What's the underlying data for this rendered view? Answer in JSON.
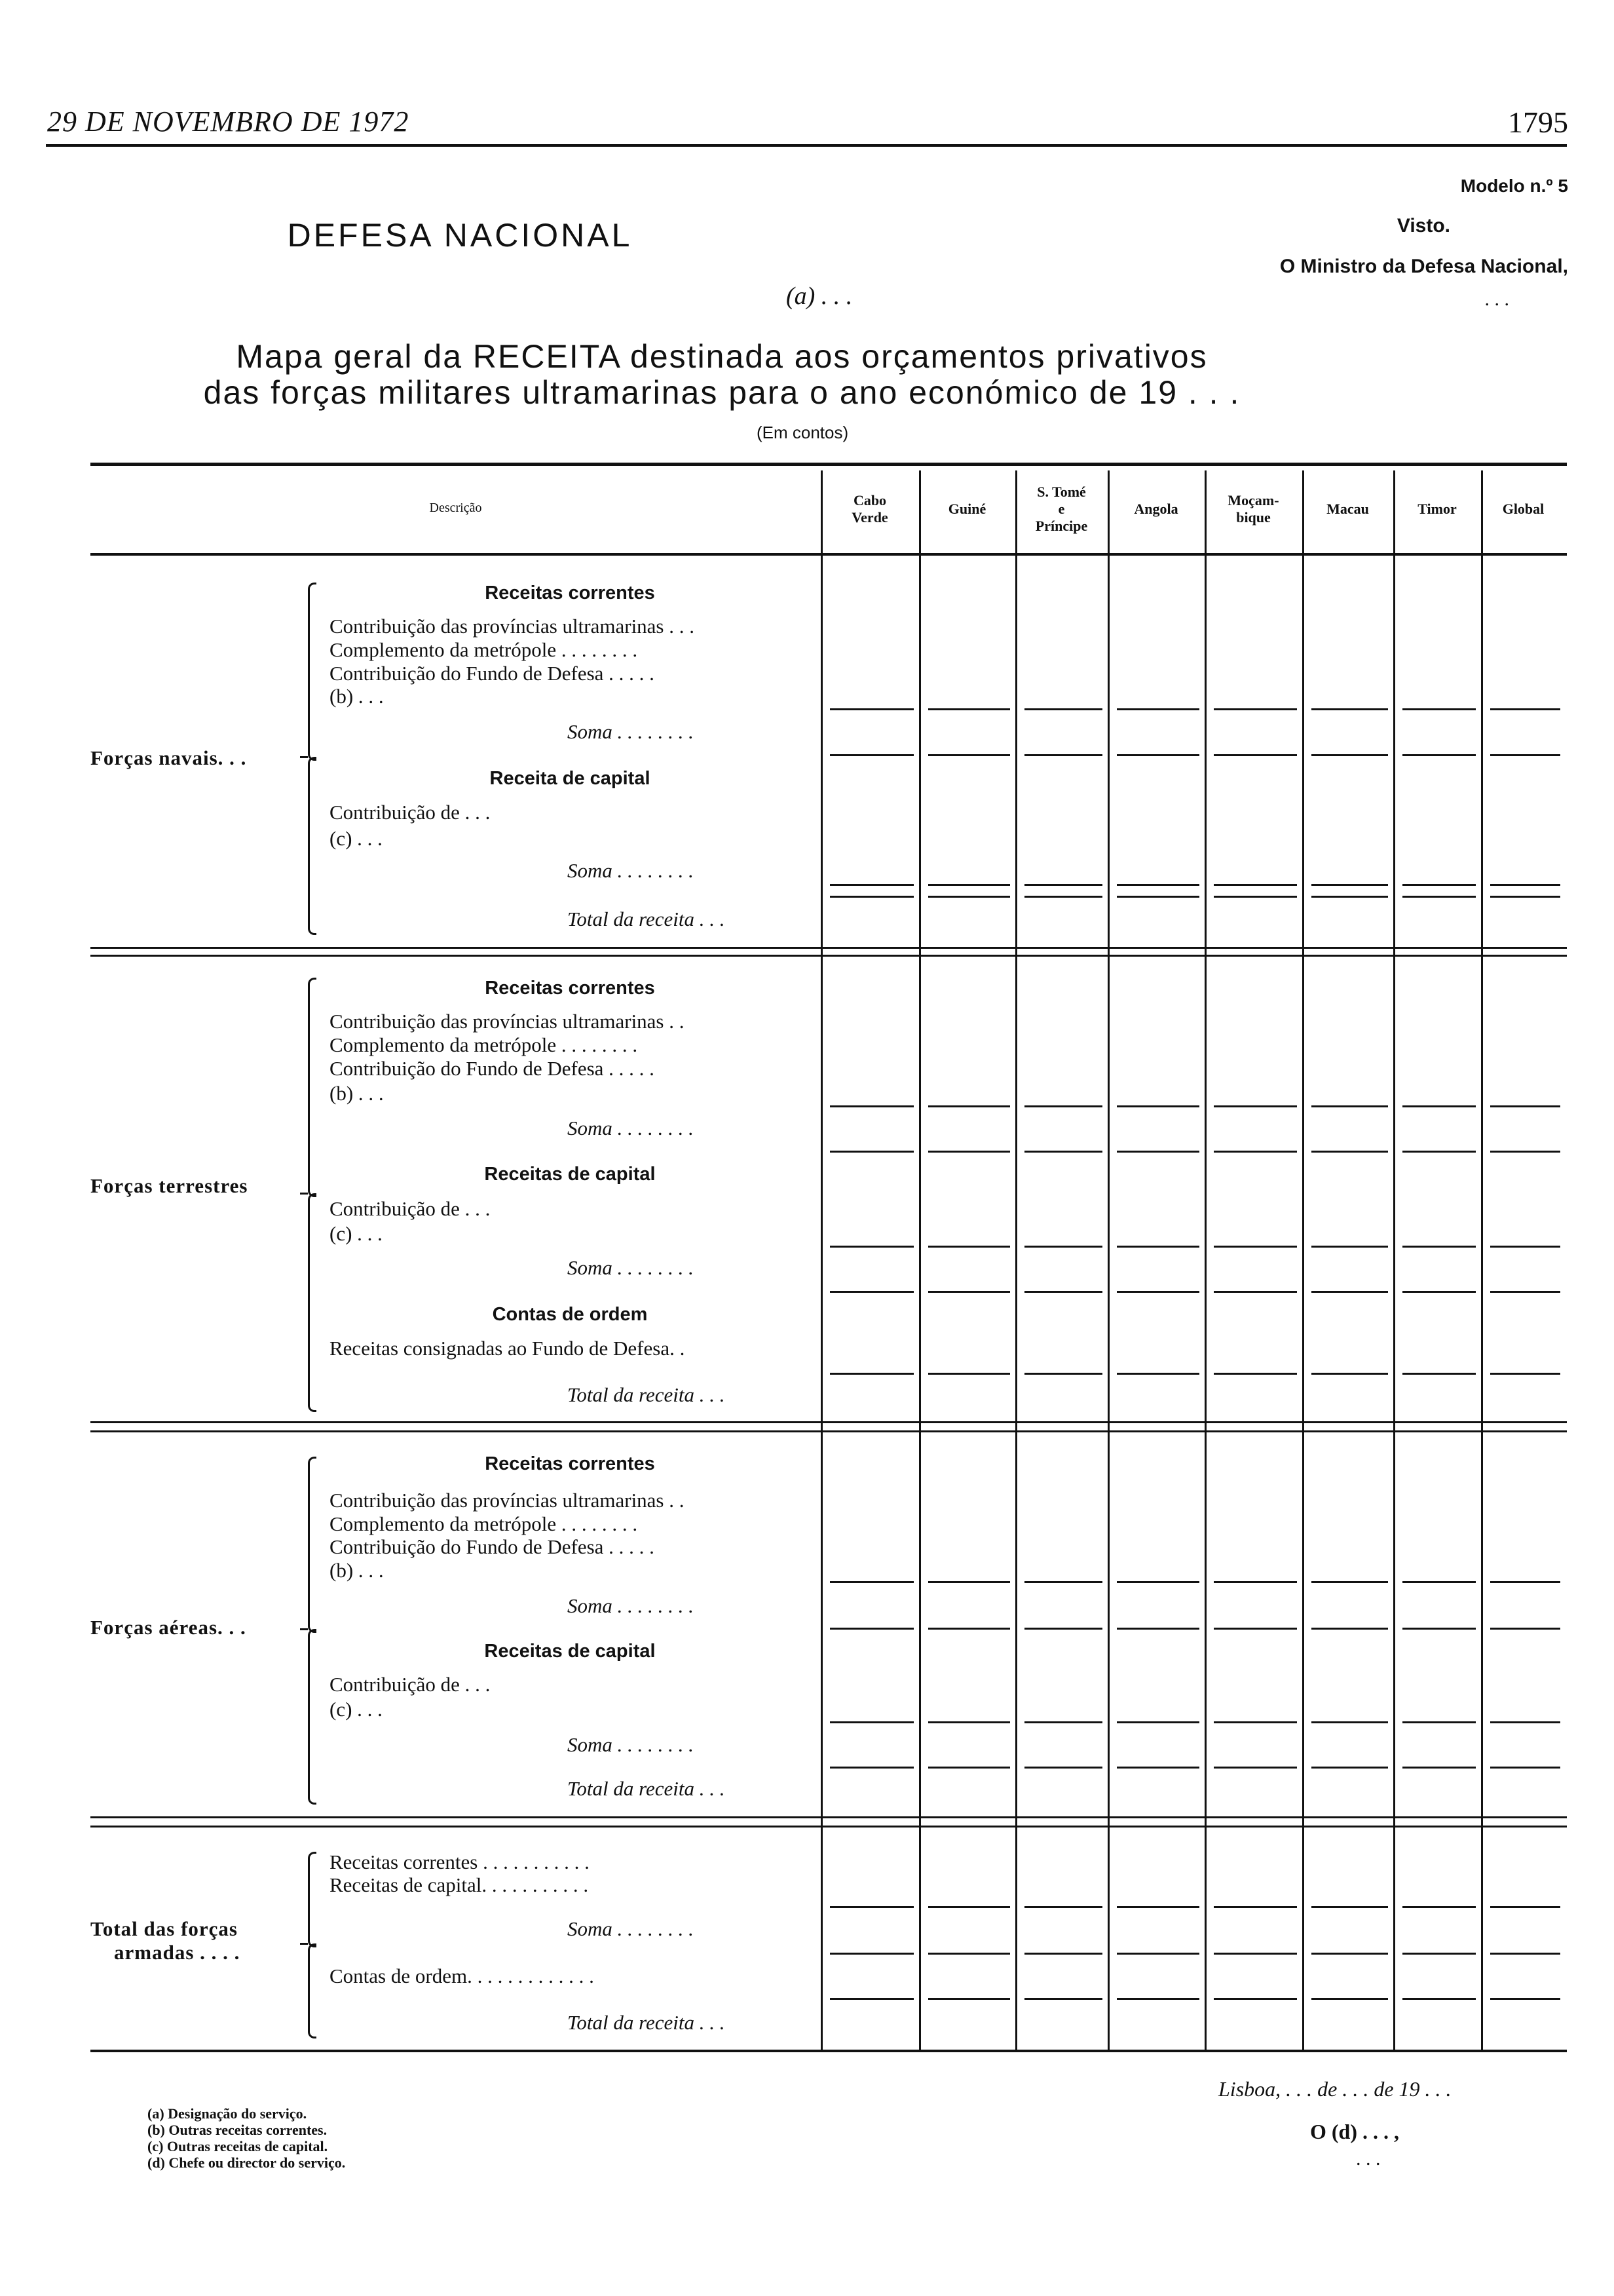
{
  "page_header": {
    "date": "29 DE NOVEMBRO DE 1972",
    "page_number": "1795"
  },
  "form": {
    "model": "Modelo n.º 5",
    "approval": "Visto.",
    "minister": "O Ministro da Defesa Nacional,",
    "minister_dots": ". . .",
    "department": "DEFESA NACIONAL",
    "service": "(a) . . .",
    "title_line1": "Mapa geral da RECEITA destinada aos orçamentos privativos",
    "title_line2": "das forças militares ultramarinas para o ano económico de 19 . . .",
    "unit": "(Em contos)"
  },
  "table": {
    "columns": [
      "Descrição",
      "Cabo\nVerde",
      "Guiné",
      "S. Tomé\ne\nPríncipe",
      "Angola",
      "Moçam-\nbique",
      "Macau",
      "Timor",
      "Global"
    ],
    "sections": [
      {
        "label": [
          "Forças navais. . ."
        ],
        "lines": [
          {
            "text": "Receitas correntes",
            "kind": "heading"
          },
          {
            "text": "Contribuição das províncias ultramarinas . . .",
            "kind": "item"
          },
          {
            "text": "Complemento da metrópole . . . . . . . .",
            "kind": "item"
          },
          {
            "text": "Contribuição do Fundo de Defesa . . . . .",
            "kind": "item"
          },
          {
            "text": "(b) . . .",
            "kind": "item"
          },
          {
            "text": "Soma . . . . . . . .",
            "kind": "soma"
          },
          {
            "text": "Receita de capital",
            "kind": "heading"
          },
          {
            "text": "Contribuição de . . .",
            "kind": "item"
          },
          {
            "text": "(c) . . .",
            "kind": "item"
          },
          {
            "text": "Soma . . . . . . . .",
            "kind": "soma"
          },
          {
            "text": "Total da receita . . .",
            "kind": "soma"
          }
        ]
      },
      {
        "label": [
          "Forças terrestres"
        ],
        "lines": [
          {
            "text": "Receitas correntes",
            "kind": "heading"
          },
          {
            "text": "Contribuição das províncias ultramarinas . .",
            "kind": "item"
          },
          {
            "text": "Complemento da metrópole . . . . . . . .",
            "kind": "item"
          },
          {
            "text": "Contribuição do Fundo de Defesa . . . . .",
            "kind": "item"
          },
          {
            "text": "(b) . . .",
            "kind": "item"
          },
          {
            "text": "Soma . . . . . . . .",
            "kind": "soma"
          },
          {
            "text": "Receitas de capital",
            "kind": "heading"
          },
          {
            "text": "Contribuição de . . .",
            "kind": "item"
          },
          {
            "text": "(c) . . .",
            "kind": "item"
          },
          {
            "text": "Soma . . . . . . . .",
            "kind": "soma"
          },
          {
            "text": "Contas de ordem",
            "kind": "heading"
          },
          {
            "text": "Receitas consignadas ao Fundo de Defesa. .",
            "kind": "item"
          },
          {
            "text": "Total da receita . . .",
            "kind": "soma"
          }
        ]
      },
      {
        "label": [
          "Forças aéreas. . ."
        ],
        "lines": [
          {
            "text": "Receitas correntes",
            "kind": "heading"
          },
          {
            "text": "Contribuição das províncias ultramarinas . .",
            "kind": "item"
          },
          {
            "text": "Complemento da metrópole . . . . . . . .",
            "kind": "item"
          },
          {
            "text": "Contribuição do Fundo de Defesa . . . . .",
            "kind": "item"
          },
          {
            "text": "(b) . . .",
            "kind": "item"
          },
          {
            "text": "Soma . . . . . . . .",
            "kind": "soma"
          },
          {
            "text": "Receitas de capital",
            "kind": "heading"
          },
          {
            "text": "Contribuição de . . .",
            "kind": "item"
          },
          {
            "text": "(c) . . .",
            "kind": "item"
          },
          {
            "text": "Soma . . . . . . . .",
            "kind": "soma"
          },
          {
            "text": "Total da receita . . .",
            "kind": "soma"
          }
        ]
      },
      {
        "label": [
          "Total das forças",
          "armadas . . . ."
        ],
        "lines": [
          {
            "text": "Receitas correntes . . . . . . . . . . .",
            "kind": "item"
          },
          {
            "text": "Receitas de capital. . . . . . . . . . .",
            "kind": "item"
          },
          {
            "text": "Soma . . . . . . . .",
            "kind": "soma"
          },
          {
            "text": "Contas de ordem. . . . . . . . . . . . .",
            "kind": "item"
          },
          {
            "text": "Total da receita . . .",
            "kind": "soma"
          }
        ]
      }
    ]
  },
  "signature": {
    "place_date": "Lisboa, . . . de . . . de 19 . . .",
    "signer": "O (d) . . . ,",
    "dots": ". . ."
  },
  "footnotes": [
    "(a) Designação do serviço.",
    "(b) Outras receitas correntes.",
    "(c) Outras receitas de capital.",
    "(d) Chefe ou director do serviço."
  ]
}
